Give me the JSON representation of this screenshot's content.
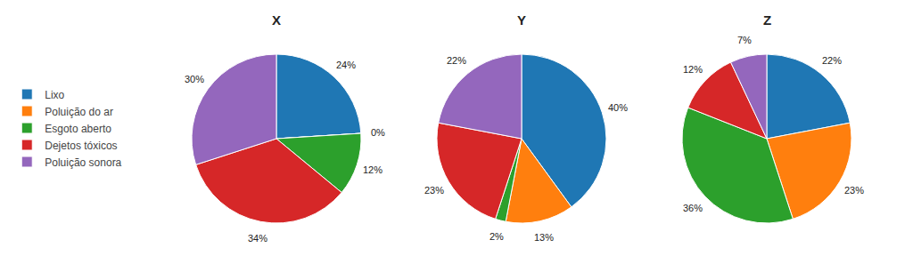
{
  "chart_data": [
    {
      "type": "pie",
      "title": "X",
      "categories": [
        "Lixo",
        "Poluição do ar",
        "Esgoto aberto",
        "Dejetos tóxicos",
        "Poluição sonora"
      ],
      "values": [
        24,
        0,
        12,
        34,
        30
      ],
      "value_labels": [
        "24%",
        "0%",
        "12%",
        "34%",
        "30%"
      ],
      "data_labels": true,
      "legend": "left"
    },
    {
      "type": "pie",
      "title": "Y",
      "categories": [
        "Lixo",
        "Poluição do ar",
        "Esgoto aberto",
        "Dejetos tóxicos",
        "Poluição sonora"
      ],
      "values": [
        40,
        13,
        2,
        23,
        22
      ],
      "value_labels": [
        "40%",
        "13%",
        "2%",
        "23%",
        "22%"
      ],
      "data_labels": true,
      "legend": "left"
    },
    {
      "type": "pie",
      "title": "Z",
      "categories": [
        "Lixo",
        "Poluição do ar",
        "Esgoto aberto",
        "Dejetos tóxicos",
        "Poluição sonora"
      ],
      "values": [
        22,
        23,
        36,
        12,
        7
      ],
      "value_labels": [
        "22%",
        "23%",
        "36%",
        "12%",
        "7%"
      ],
      "data_labels": true,
      "legend": "left"
    }
  ]
}
